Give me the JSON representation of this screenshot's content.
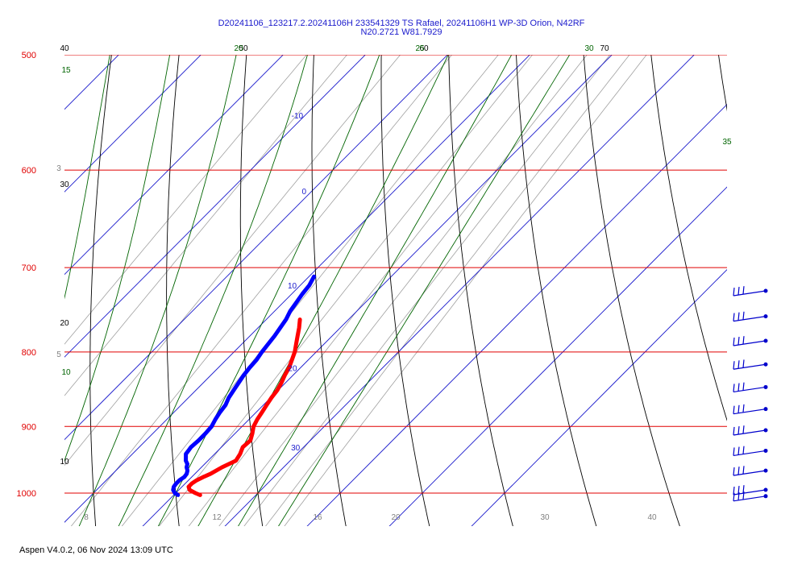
{
  "header": {
    "title_line1": "D20241106_123217.2.20241106H 233541329 TS Rafael, 20241106H1 WP-3D Orion, N42RF",
    "title_line2": "N20.2721 W81.7929"
  },
  "footer": {
    "text": "Aspen V4.0.2, 06 Nov  2024  13:09 UTC"
  },
  "colors": {
    "isobar": "#e00000",
    "isotherm": "#1a1acc",
    "dry_adiabat": "#000000",
    "moist_adiabat": "#006400",
    "mixing_ratio": "#a0a0a0",
    "temperature_trace": "#ff0000",
    "dewpoint_trace": "#0000ff",
    "wind_barbs": "#0000cc"
  },
  "chart_data": {
    "type": "skew-t log-p",
    "pressure_axis_label_values": [
      "500",
      "600",
      "700",
      "800",
      "900",
      "1000"
    ],
    "pressure_range_hpa": [
      500,
      1000
    ],
    "temperature_range_c": [
      5,
      42
    ],
    "isotherm_labels": [
      "-10",
      "0",
      "10",
      "20",
      "30"
    ],
    "dry_adiabat_labels": [
      {
        "text": "40",
        "where": "top-left"
      },
      {
        "text": "50",
        "where": "top"
      },
      {
        "text": "60",
        "where": "top"
      },
      {
        "text": "70",
        "where": "top-right"
      },
      {
        "text": "30",
        "where": "left"
      },
      {
        "text": "20",
        "where": "left"
      },
      {
        "text": "10",
        "where": "left"
      }
    ],
    "moist_adiabat_labels": [
      {
        "text": "15",
        "where": "top-left"
      },
      {
        "text": "20",
        "where": "top"
      },
      {
        "text": "25",
        "where": "top"
      },
      {
        "text": "30",
        "where": "top-right"
      },
      {
        "text": "35",
        "where": "right"
      },
      {
        "text": "10",
        "where": "left"
      }
    ],
    "mixing_ratio_labels": [
      "8",
      "12",
      "16",
      "20",
      "30",
      "40"
    ],
    "mixing_ratio_side_labels": [
      "3",
      "5"
    ],
    "temperature_profile": [
      [
        1003,
        23.2
      ],
      [
        1000,
        22.4
      ],
      [
        995,
        21.3
      ],
      [
        990,
        20.8
      ],
      [
        985,
        20.8
      ],
      [
        980,
        21.0
      ],
      [
        975,
        21.4
      ],
      [
        970,
        21.9
      ],
      [
        960,
        22.5
      ],
      [
        950,
        23.4
      ],
      [
        940,
        23.1
      ],
      [
        930,
        22.6
      ],
      [
        920,
        22.7
      ],
      [
        910,
        22.1
      ],
      [
        900,
        21.4
      ],
      [
        890,
        21.0
      ],
      [
        880,
        20.7
      ],
      [
        870,
        20.4
      ],
      [
        860,
        20.1
      ],
      [
        850,
        19.9
      ],
      [
        840,
        19.5
      ],
      [
        830,
        19.0
      ],
      [
        820,
        18.6
      ],
      [
        810,
        18.0
      ],
      [
        800,
        17.4
      ],
      [
        790,
        16.6
      ],
      [
        780,
        15.8
      ],
      [
        770,
        15.0
      ],
      [
        760,
        14.1
      ]
    ],
    "dewpoint_profile": [
      [
        1003,
        20.5
      ],
      [
        1000,
        19.9
      ],
      [
        995,
        19.3
      ],
      [
        990,
        19.0
      ],
      [
        985,
        18.9
      ],
      [
        980,
        18.9
      ],
      [
        975,
        19.1
      ],
      [
        970,
        19.0
      ],
      [
        965,
        18.7
      ],
      [
        960,
        18.2
      ],
      [
        955,
        17.9
      ],
      [
        950,
        17.3
      ],
      [
        945,
        16.9
      ],
      [
        940,
        16.5
      ],
      [
        935,
        16.4
      ],
      [
        930,
        16.3
      ],
      [
        920,
        16.4
      ],
      [
        910,
        16.4
      ],
      [
        900,
        16.3
      ],
      [
        890,
        15.9
      ],
      [
        880,
        15.6
      ],
      [
        870,
        15.4
      ],
      [
        860,
        14.9
      ],
      [
        850,
        14.6
      ],
      [
        840,
        14.3
      ],
      [
        830,
        14.0
      ],
      [
        820,
        13.8
      ],
      [
        810,
        13.7
      ],
      [
        800,
        13.4
      ],
      [
        790,
        13.2
      ],
      [
        780,
        13.0
      ],
      [
        770,
        12.7
      ],
      [
        760,
        12.4
      ],
      [
        750,
        11.9
      ],
      [
        740,
        11.6
      ],
      [
        730,
        11.3
      ],
      [
        720,
        11.1
      ],
      [
        710,
        10.6
      ]
    ],
    "wind_barb_pressures_hpa": [
      730,
      760,
      790,
      820,
      850,
      880,
      910,
      940,
      970,
      1000,
      1010
    ],
    "wind_barb_barbs": [
      3,
      3,
      3,
      3,
      3,
      3,
      3,
      3,
      3,
      3,
      3
    ]
  }
}
